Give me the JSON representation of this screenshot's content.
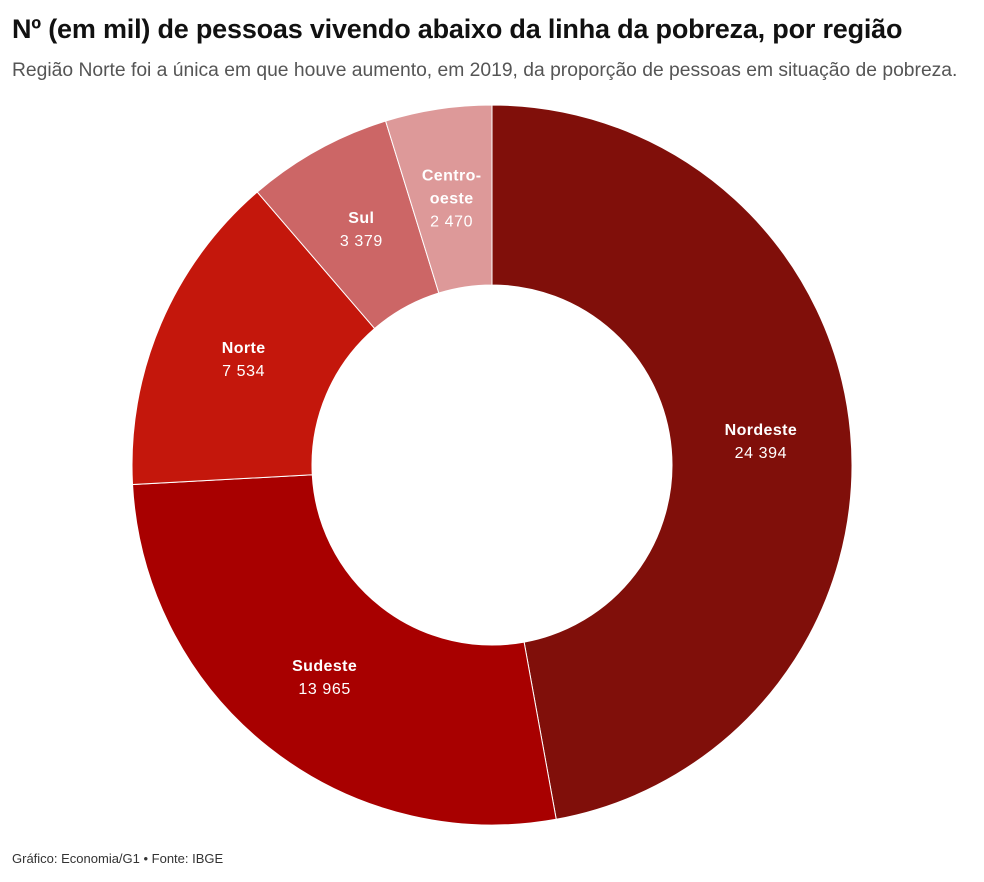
{
  "credits": "Gráfico: Economia/G1 • Fonte: IBGE",
  "chart_data": {
    "type": "pie",
    "variant": "donut",
    "title": "Nº (em mil) de pessoas vivendo abaixo da linha da pobreza, por região",
    "subtitle": "Região Norte foi a única em que houve aumento, em 2019, da proporção de pessoas em situação de pobreza.",
    "categories": [
      "Nordeste",
      "Sudeste",
      "Norte",
      "Sul",
      "Centro-oeste"
    ],
    "values": [
      24394,
      13965,
      7534,
      3379,
      2470
    ],
    "data_labels": [
      "24 394",
      "13 965",
      "7 534",
      "3 379",
      "2 470"
    ],
    "colors": [
      "#800f0a",
      "#a80000",
      "#c4170c",
      "#cc6666",
      "#dd9999"
    ]
  }
}
